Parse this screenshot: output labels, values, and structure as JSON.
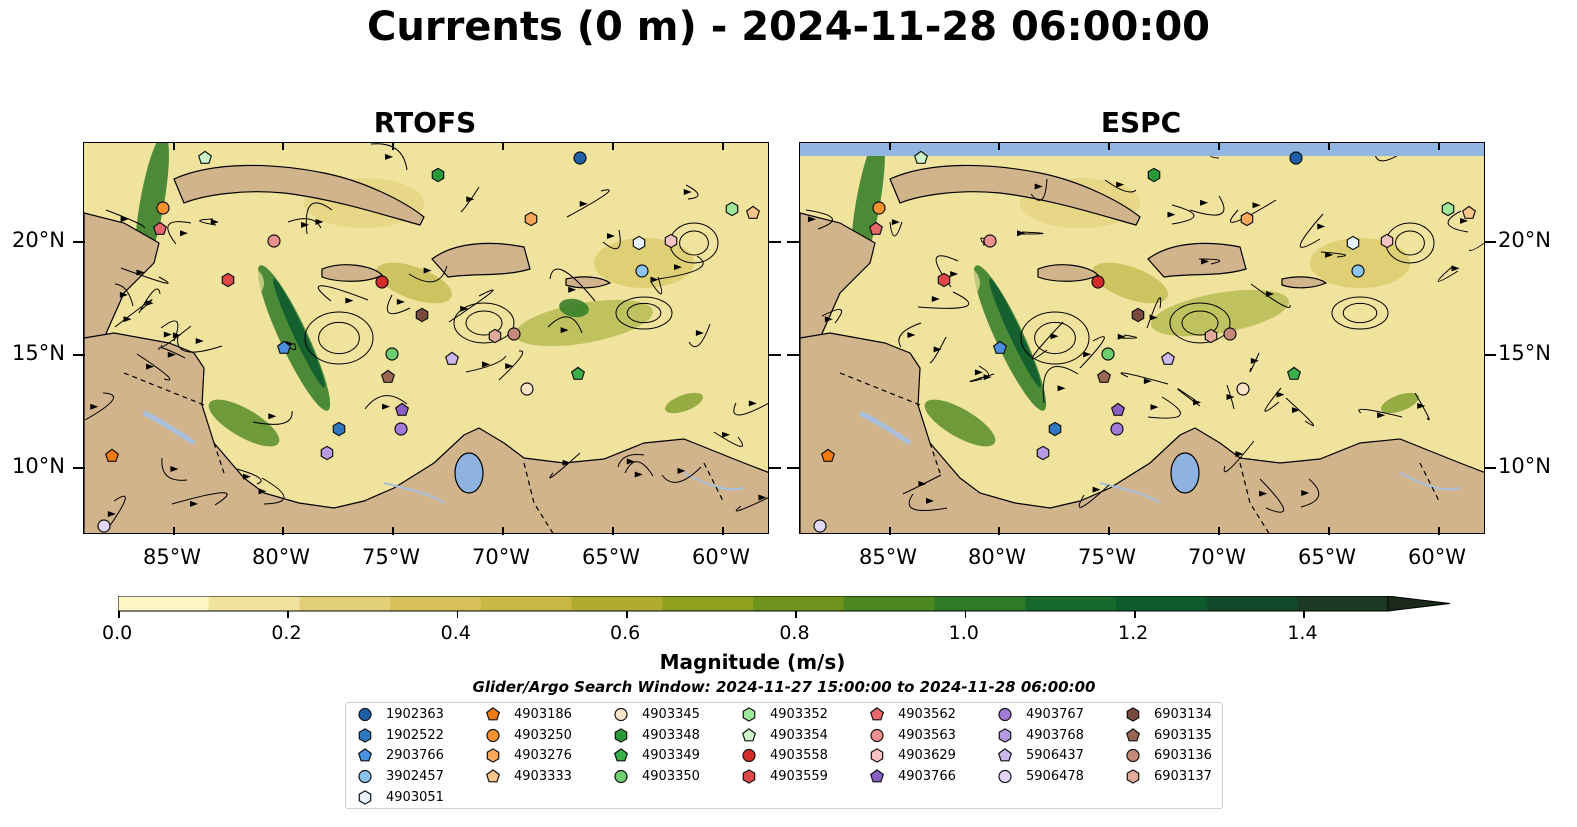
{
  "title": "Currents (0 m) - 2024-11-28 06:00:00",
  "panels": [
    {
      "title": "RTOFS"
    },
    {
      "title": "ESPC"
    }
  ],
  "lon_labels": [
    "85°W",
    "80°W",
    "75°W",
    "70°W",
    "65°W",
    "60°W"
  ],
  "lat_labels": [
    "20°N",
    "15°N",
    "10°N"
  ],
  "colorbar": {
    "label": "Magnitude (m/s)",
    "min": 0.0,
    "max": 1.5,
    "ticks": [
      "0.0",
      "0.2",
      "0.4",
      "0.6",
      "0.8",
      "1.0",
      "1.2",
      "1.4"
    ],
    "colors": [
      "#fdf6c4",
      "#f0e39e",
      "#e2cf78",
      "#d7c058",
      "#c9b845",
      "#b0ac2f",
      "#8fa01f",
      "#6f941d",
      "#4d8720",
      "#2f7a26",
      "#176a2b",
      "#0e5b2e",
      "#134a2c",
      "#1a3a26",
      "#1c2a1c"
    ],
    "extend": "max"
  },
  "search_window": "Glider/Argo Search Window: 2024-11-27 15:00:00 to 2024-11-28 06:00:00",
  "legend": [
    {
      "id": "1902363",
      "shape": "circle",
      "color": "#1f5fa8"
    },
    {
      "id": "1902522",
      "shape": "hexagon",
      "color": "#2e78c2"
    },
    {
      "id": "2903766",
      "shape": "pentagon",
      "color": "#4a8fe0"
    },
    {
      "id": "3902457",
      "shape": "circle",
      "color": "#8cc4ef"
    },
    {
      "id": "4903051",
      "shape": "hexagon",
      "color": "#e6f2fb"
    },
    {
      "id": "4903186",
      "shape": "pentagon",
      "color": "#f07a10"
    },
    {
      "id": "4903250",
      "shape": "circle",
      "color": "#f79233"
    },
    {
      "id": "4903276",
      "shape": "hexagon",
      "color": "#f9a85a"
    },
    {
      "id": "4903333",
      "shape": "pentagon",
      "color": "#fcc68a"
    },
    {
      "id": "4903345",
      "shape": "circle",
      "color": "#fde3c8"
    },
    {
      "id": "4903348",
      "shape": "hexagon",
      "color": "#2a9a38"
    },
    {
      "id": "4903349",
      "shape": "pentagon",
      "color": "#3bb04a"
    },
    {
      "id": "4903350",
      "shape": "circle",
      "color": "#6cce6c"
    },
    {
      "id": "4903352",
      "shape": "hexagon",
      "color": "#9ee89a"
    },
    {
      "id": "4903354",
      "shape": "pentagon",
      "color": "#cdf7c8"
    },
    {
      "id": "4903558",
      "shape": "circle",
      "color": "#d42a2a"
    },
    {
      "id": "4903559",
      "shape": "hexagon",
      "color": "#e04848"
    },
    {
      "id": "4903562",
      "shape": "pentagon",
      "color": "#e8676a"
    },
    {
      "id": "4903563",
      "shape": "circle",
      "color": "#ef9090"
    },
    {
      "id": "4903629",
      "shape": "hexagon",
      "color": "#f7c2c2"
    },
    {
      "id": "4903766",
      "shape": "pentagon",
      "color": "#8a5fc4"
    },
    {
      "id": "4903767",
      "shape": "circle",
      "color": "#a07bd6"
    },
    {
      "id": "4903768",
      "shape": "hexagon",
      "color": "#b69be2"
    },
    {
      "id": "5906437",
      "shape": "pentagon",
      "color": "#cdb8ee"
    },
    {
      "id": "5906478",
      "shape": "circle",
      "color": "#e3d6f7"
    },
    {
      "id": "6903134",
      "shape": "hexagon",
      "color": "#7a4a3e"
    },
    {
      "id": "6903135",
      "shape": "pentagon",
      "color": "#9a6552"
    },
    {
      "id": "6903136",
      "shape": "circle",
      "color": "#c48a7a"
    },
    {
      "id": "6903137",
      "shape": "hexagon",
      "color": "#e2aa9a"
    }
  ]
}
